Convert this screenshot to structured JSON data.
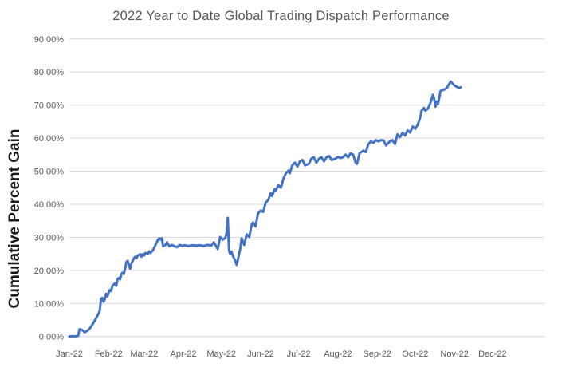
{
  "title": "2022 Year to Date Global Trading Dispatch Performance",
  "y_axis_title": "Cumulative Percent Gain",
  "colors": {
    "line": "#4472C4",
    "gridline": "#D9D9D9",
    "title_text": "#595959",
    "tick_text": "#595959",
    "y_axis_title_text": "#1A1A1A",
    "background": "#FFFFFF"
  },
  "chart_data": {
    "type": "line",
    "title": "2022 Year to Date Global Trading Dispatch Performance",
    "xlabel": "",
    "ylabel": "Cumulative Percent Gain",
    "ylim": [
      0,
      90
    ],
    "y_tick_labels": [
      "0.00%",
      "10.00%",
      "20.00%",
      "30.00%",
      "40.00%",
      "50.00%",
      "60.00%",
      "70.00%",
      "80.00%",
      "90.00%"
    ],
    "x_tick_labels": [
      "Jan-22",
      "Feb-22",
      "Mar-22",
      "Apr-22",
      "May-22",
      "Jun-22",
      "Jul-22",
      "Aug-22",
      "Sep-22",
      "Oct-22",
      "Nov-22",
      "Dec-22"
    ],
    "x_tick_days": [
      0,
      31,
      59,
      90,
      120,
      151,
      181,
      212,
      243,
      273,
      304,
      334
    ],
    "x_range_days": [
      0,
      375
    ],
    "grid": "horizontal",
    "legend": "none",
    "x_unit": "day of year 2022 (labels = month start)",
    "y_unit": "percent",
    "series": [
      {
        "name": "Cumulative Percent Gain",
        "points": [
          [
            0,
            0.0
          ],
          [
            2,
            0.1
          ],
          [
            4,
            0.05
          ],
          [
            6,
            0.15
          ],
          [
            7,
            0.2
          ],
          [
            8,
            2.2
          ],
          [
            10,
            2.0
          ],
          [
            12,
            1.3
          ],
          [
            14,
            1.7
          ],
          [
            16,
            2.4
          ],
          [
            18,
            3.5
          ],
          [
            20,
            4.8
          ],
          [
            22,
            6.2
          ],
          [
            23,
            6.9
          ],
          [
            24,
            7.8
          ],
          [
            25,
            11.4
          ],
          [
            26,
            11.7
          ],
          [
            27,
            10.5
          ],
          [
            28,
            11.3
          ],
          [
            29,
            12.9
          ],
          [
            30,
            12.1
          ],
          [
            31,
            13.3
          ],
          [
            32,
            14.1
          ],
          [
            33,
            13.7
          ],
          [
            34,
            15.3
          ],
          [
            36,
            16.1
          ],
          [
            37,
            15.3
          ],
          [
            38,
            17.3
          ],
          [
            39,
            17.7
          ],
          [
            40,
            17.3
          ],
          [
            41,
            18.9
          ],
          [
            42,
            19.3
          ],
          [
            43,
            18.9
          ],
          [
            44,
            20.5
          ],
          [
            45,
            22.5
          ],
          [
            46,
            22.9
          ],
          [
            47,
            21.7
          ],
          [
            48,
            20.5
          ],
          [
            49,
            22.1
          ],
          [
            50,
            22.9
          ],
          [
            51,
            23.7
          ],
          [
            52,
            24.1
          ],
          [
            53,
            23.7
          ],
          [
            54,
            24.5
          ],
          [
            56,
            24.9
          ],
          [
            57,
            24.1
          ],
          [
            58,
            24.9
          ],
          [
            59,
            24.5
          ],
          [
            60,
            25.3
          ],
          [
            62,
            24.9
          ],
          [
            63,
            25.7
          ],
          [
            64,
            25.3
          ],
          [
            66,
            26.1
          ],
          [
            67,
            26.9
          ],
          [
            69,
            28.5
          ],
          [
            70,
            29.3
          ],
          [
            71,
            29.7
          ],
          [
            72,
            29.3
          ],
          [
            73,
            29.7
          ],
          [
            74,
            27.3
          ],
          [
            76,
            27.7
          ],
          [
            77,
            28.5
          ],
          [
            79,
            27.3
          ],
          [
            81,
            27.7
          ],
          [
            83,
            27.3
          ],
          [
            85,
            27.0
          ],
          [
            87,
            27.7
          ],
          [
            89,
            27.4
          ],
          [
            91,
            27.6
          ],
          [
            94,
            27.4
          ],
          [
            97,
            27.6
          ],
          [
            100,
            27.5
          ],
          [
            103,
            27.6
          ],
          [
            106,
            27.4
          ],
          [
            109,
            27.7
          ],
          [
            112,
            27.5
          ],
          [
            114,
            28.5
          ],
          [
            115,
            27.9
          ],
          [
            117,
            26.5
          ],
          [
            118,
            28.0
          ],
          [
            119,
            30.1
          ],
          [
            120,
            29.7
          ],
          [
            121,
            29.3
          ],
          [
            123,
            29.7
          ],
          [
            124,
            31.0
          ],
          [
            125,
            35.9
          ],
          [
            126,
            26.1
          ],
          [
            127,
            24.9
          ],
          [
            128,
            25.7
          ],
          [
            129,
            24.5
          ],
          [
            130,
            23.7
          ],
          [
            131,
            22.8
          ],
          [
            132,
            21.7
          ],
          [
            133,
            23.2
          ],
          [
            135,
            26.9
          ],
          [
            136,
            29.7
          ],
          [
            138,
            27.7
          ],
          [
            140,
            30.9
          ],
          [
            142,
            30.1
          ],
          [
            144,
            34.0
          ],
          [
            145,
            34.5
          ],
          [
            147,
            33.3
          ],
          [
            149,
            37.3
          ],
          [
            151,
            38.1
          ],
          [
            153,
            37.7
          ],
          [
            155,
            40.5
          ],
          [
            157,
            41.3
          ],
          [
            159,
            43.4
          ],
          [
            160,
            42.5
          ],
          [
            162,
            44.6
          ],
          [
            163,
            44.2
          ],
          [
            165,
            45.8
          ],
          [
            167,
            45.0
          ],
          [
            169,
            47.8
          ],
          [
            171,
            49.4
          ],
          [
            173,
            50.2
          ],
          [
            174,
            49.4
          ],
          [
            176,
            51.8
          ],
          [
            178,
            52.6
          ],
          [
            180,
            51.4
          ],
          [
            182,
            53.0
          ],
          [
            184,
            53.4
          ],
          [
            186,
            51.8
          ],
          [
            189,
            52.2
          ],
          [
            191,
            53.8
          ],
          [
            193,
            54.2
          ],
          [
            195,
            52.6
          ],
          [
            197,
            53.8
          ],
          [
            199,
            54.2
          ],
          [
            201,
            53.0
          ],
          [
            203,
            54.2
          ],
          [
            205,
            54.6
          ],
          [
            207,
            53.4
          ],
          [
            210,
            53.8
          ],
          [
            212,
            54.3
          ],
          [
            214,
            54.0
          ],
          [
            216,
            54.2
          ],
          [
            218,
            55.0
          ],
          [
            220,
            54.2
          ],
          [
            222,
            55.4
          ],
          [
            224,
            55.0
          ],
          [
            226,
            52.6
          ],
          [
            227,
            52.2
          ],
          [
            229,
            55.4
          ],
          [
            232,
            56.2
          ],
          [
            234,
            55.8
          ],
          [
            236,
            58.2
          ],
          [
            238,
            59.0
          ],
          [
            240,
            58.6
          ],
          [
            242,
            59.4
          ],
          [
            244,
            59.0
          ],
          [
            246,
            59.4
          ],
          [
            248,
            59.3
          ],
          [
            250,
            57.8
          ],
          [
            253,
            59.0
          ],
          [
            255,
            59.4
          ],
          [
            257,
            58.2
          ],
          [
            259,
            61.1
          ],
          [
            261,
            60.3
          ],
          [
            263,
            61.6
          ],
          [
            265,
            60.8
          ],
          [
            267,
            62.3
          ],
          [
            269,
            61.7
          ],
          [
            271,
            63.5
          ],
          [
            273,
            62.8
          ],
          [
            275,
            64.1
          ],
          [
            277,
            66.3
          ],
          [
            278,
            68.3
          ],
          [
            280,
            69.1
          ],
          [
            281,
            68.3
          ],
          [
            283,
            68.9
          ],
          [
            285,
            70.7
          ],
          [
            287,
            73.1
          ],
          [
            288,
            71.9
          ],
          [
            289,
            69.5
          ],
          [
            290,
            71.1
          ],
          [
            291,
            70.3
          ],
          [
            293,
            74.3
          ],
          [
            296,
            74.7
          ],
          [
            298,
            75.1
          ],
          [
            299,
            75.9
          ],
          [
            301,
            77.1
          ],
          [
            302,
            76.7
          ],
          [
            304,
            75.9
          ],
          [
            306,
            75.5
          ],
          [
            308,
            75.1
          ],
          [
            309,
            75.4
          ]
        ]
      }
    ]
  }
}
